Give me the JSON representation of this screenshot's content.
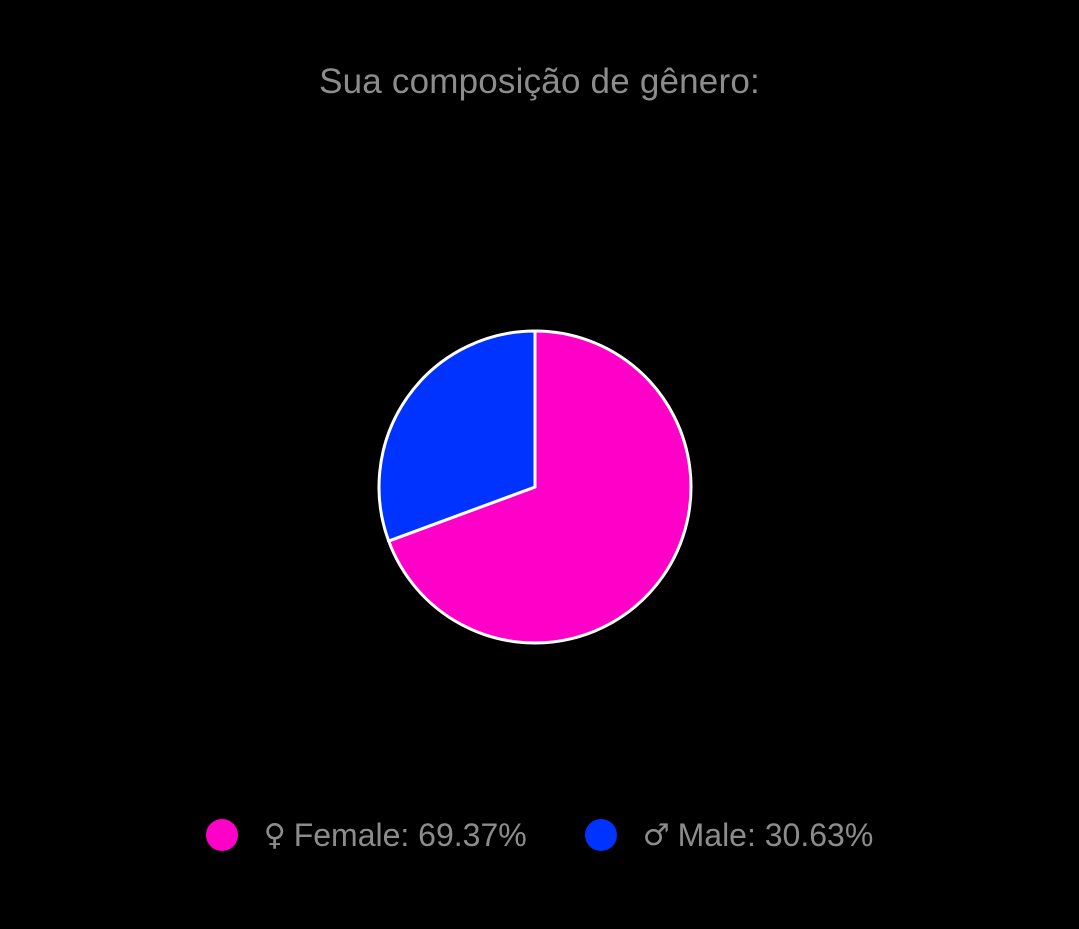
{
  "chart_data": {
    "type": "pie",
    "title": "Sua composição de gênero:",
    "slices": [
      {
        "symbol": "♀",
        "label": "Female",
        "value": 69.37,
        "value_text": "69.37%",
        "color": "#ff00c8"
      },
      {
        "symbol": "♂",
        "label": "Male",
        "value": 30.63,
        "value_text": "30.63%",
        "color": "#0033ff"
      }
    ],
    "slice_border_color": "#ffffff",
    "legend_position": "bottom"
  }
}
